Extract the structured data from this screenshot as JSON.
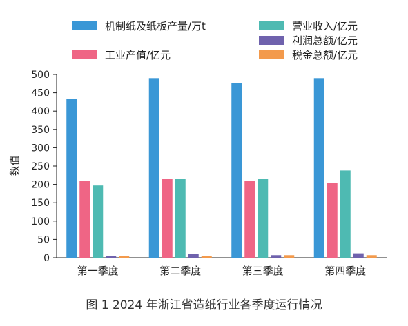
{
  "caption": "图 1   2024 年浙江省造纸行业各季度运行情况",
  "chart_data": {
    "type": "bar",
    "title": "",
    "xlabel": "",
    "ylabel": "数值",
    "ylim": [
      0,
      500
    ],
    "yticks": [
      0,
      50,
      100,
      150,
      200,
      250,
      300,
      350,
      400,
      450,
      500
    ],
    "grid": false,
    "legend_placement": "top",
    "categories": [
      "第一季度",
      "第二季度",
      "第三季度",
      "第四季度"
    ],
    "series": [
      {
        "name": "机制纸及纸板产量/万t",
        "color": "#3a97d6",
        "values": [
          434,
          490,
          476,
          490
        ]
      },
      {
        "name": "工业产值/亿元",
        "color": "#ef6585",
        "values": [
          210,
          216,
          210,
          204
        ]
      },
      {
        "name": "营业收入/亿元",
        "color": "#4ebab2",
        "values": [
          197,
          216,
          216,
          238
        ]
      },
      {
        "name": "利润总额/亿元",
        "color": "#6f62ad",
        "values": [
          5,
          10,
          7,
          12
        ]
      },
      {
        "name": "税金总额/亿元",
        "color": "#f39a4c",
        "values": [
          5,
          5,
          7,
          7
        ]
      }
    ]
  }
}
